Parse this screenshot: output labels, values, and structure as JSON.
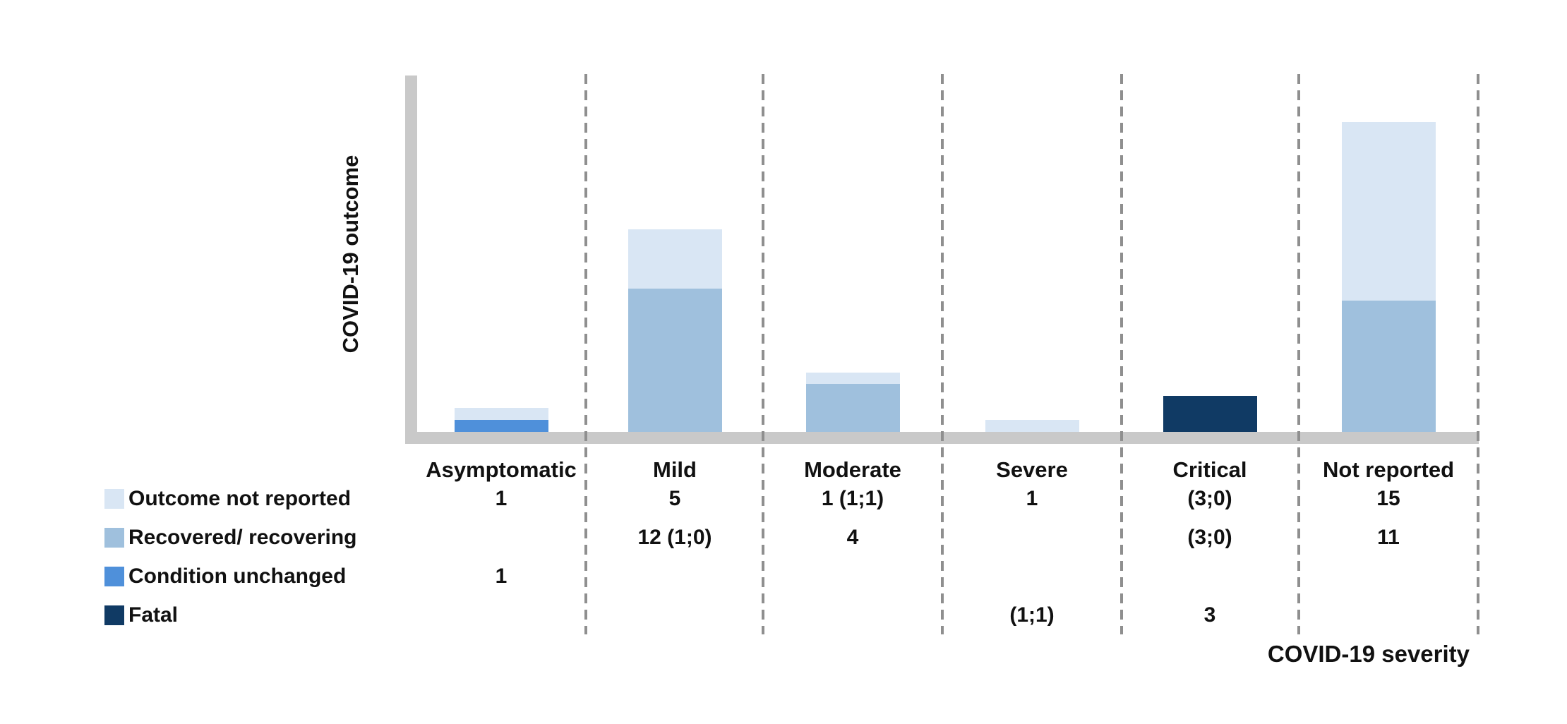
{
  "chart_data": {
    "type": "bar",
    "subtype": "stacked-vertical",
    "title": "",
    "xlabel": "COVID-19 severity",
    "ylabel": "COVID-19 outcome",
    "gridlines": false,
    "legend_position": "bottom-left",
    "categories": [
      "Asymptomatic",
      "Mild",
      "Moderate",
      "Severe",
      "Critical",
      "Not reported"
    ],
    "series": [
      {
        "name": "Outcome not reported",
        "color": "#d9e6f4",
        "values": [
          1,
          5,
          1,
          1,
          0,
          15
        ]
      },
      {
        "name": "Recovered/ recovering",
        "color": "#9fc0dd",
        "values": [
          0,
          12,
          4,
          0,
          0,
          11
        ]
      },
      {
        "name": "Condition unchanged",
        "color": "#4f90da",
        "values": [
          1,
          0,
          0,
          0,
          0,
          0
        ]
      },
      {
        "name": "Fatal",
        "color": "#103a64",
        "values": [
          0,
          0,
          0,
          0,
          3,
          0
        ]
      }
    ],
    "bar_totals": [
      2,
      17,
      5,
      1,
      3,
      26
    ],
    "table_rows": [
      {
        "label": "Outcome not reported",
        "swatch": "#d9e6f4",
        "cells": [
          "1",
          "5",
          "1 (1;1)",
          "1",
          "(3;0)",
          "15"
        ]
      },
      {
        "label": "Recovered/ recovering",
        "swatch": "#9fc0dd",
        "cells": [
          "",
          "12 (1;0)",
          "4",
          "",
          "(3;0)",
          "11"
        ]
      },
      {
        "label": "Condition unchanged",
        "swatch": "#4f90da",
        "cells": [
          "1",
          "",
          "",
          "",
          "",
          ""
        ]
      },
      {
        "label": "Fatal",
        "swatch": "#103a64",
        "cells": [
          "",
          "",
          "",
          "(1;1)",
          "3",
          ""
        ]
      }
    ]
  },
  "colors": {
    "axis": "#c9c9c9",
    "dashed_separator": "#8f8f8f",
    "text": "#111111"
  }
}
